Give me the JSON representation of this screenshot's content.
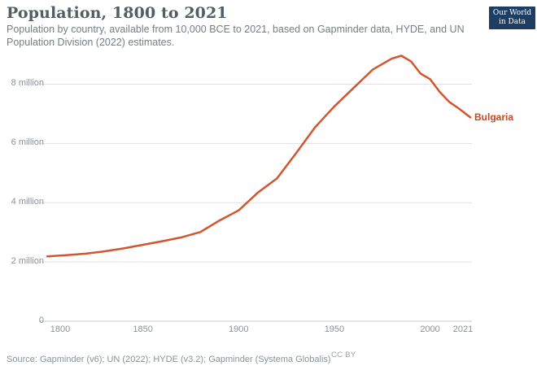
{
  "header": {
    "title": "Population, 1800 to 2021",
    "subtitle": "Population by country, available from 10,000 BCE to 2021, based on Gapminder data, HYDE, and UN Population Division (2022) estimates."
  },
  "logo": {
    "line1": "Our World",
    "line2": "in Data",
    "bg_color": "#1d3d63"
  },
  "footer": {
    "source": "Source: Gapminder (v6); UN (2022); HYDE (v3.2); Gapminder (Systema Globalis)",
    "license": "CC BY"
  },
  "chart_data": {
    "type": "line",
    "title": "Population, 1800 to 2021",
    "xlabel": "",
    "ylabel": "",
    "x_range": [
      1800,
      2021
    ],
    "y_range": [
      0,
      8800000
    ],
    "grid": "horizontal",
    "legend_position": "end-of-line-label",
    "line_color": "#d2552f",
    "label_color": "#c14a22",
    "grid_color": "#dfe2e5",
    "axis_color": "#c7cdd1",
    "y_ticks": [
      {
        "value": 0,
        "label": "0"
      },
      {
        "value": 2000000,
        "label": "2 million"
      },
      {
        "value": 4000000,
        "label": "4 million"
      },
      {
        "value": 6000000,
        "label": "6 million"
      },
      {
        "value": 8000000,
        "label": "8 million"
      }
    ],
    "x_ticks": [
      {
        "year": 1800,
        "label": "1800"
      },
      {
        "year": 1850,
        "label": "1850"
      },
      {
        "year": 1900,
        "label": "1900"
      },
      {
        "year": 1950,
        "label": "1950"
      },
      {
        "year": 2000,
        "label": "2000"
      },
      {
        "year": 2021,
        "label": "2021"
      }
    ],
    "series": [
      {
        "name": "Bulgaria",
        "points": [
          [
            1800,
            2190000
          ],
          [
            1810,
            2230000
          ],
          [
            1820,
            2280000
          ],
          [
            1830,
            2360000
          ],
          [
            1840,
            2460000
          ],
          [
            1850,
            2580000
          ],
          [
            1860,
            2700000
          ],
          [
            1870,
            2830000
          ],
          [
            1880,
            3010000
          ],
          [
            1890,
            3400000
          ],
          [
            1900,
            3740000
          ],
          [
            1910,
            4340000
          ],
          [
            1920,
            4820000
          ],
          [
            1930,
            5670000
          ],
          [
            1940,
            6550000
          ],
          [
            1950,
            7250000
          ],
          [
            1960,
            7870000
          ],
          [
            1970,
            8490000
          ],
          [
            1980,
            8860000
          ],
          [
            1985,
            8960000
          ],
          [
            1990,
            8770000
          ],
          [
            1995,
            8360000
          ],
          [
            2000,
            8170000
          ],
          [
            2005,
            7740000
          ],
          [
            2010,
            7400000
          ],
          [
            2015,
            7180000
          ],
          [
            2021,
            6880000
          ]
        ]
      }
    ]
  }
}
